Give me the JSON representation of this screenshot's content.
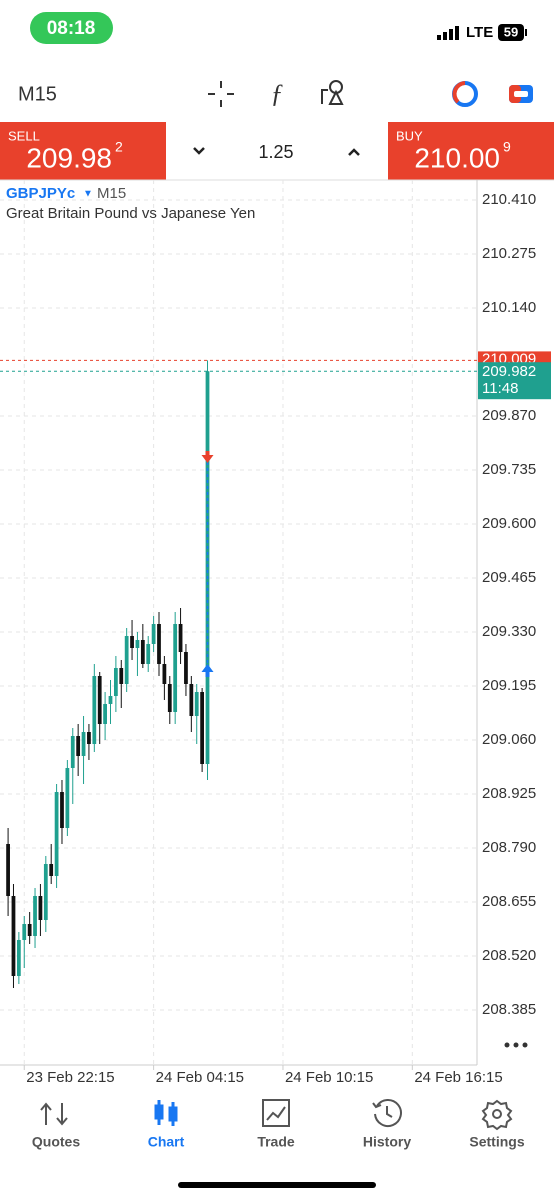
{
  "status_bar": {
    "time": "08:18",
    "network": "LTE",
    "battery": "59"
  },
  "toolbar": {
    "timeframe": "M15"
  },
  "trade_panel": {
    "sell_label": "SELL",
    "sell_price": "209.98",
    "sell_pip": "2",
    "volume": "1.25",
    "buy_label": "BUY",
    "buy_price": "210.00",
    "buy_pip": "9"
  },
  "chart_data": {
    "type": "candlestick",
    "symbol": "GBPJPYc",
    "timeframe": "M15",
    "description": "Great Britain Pound vs Japanese Yen",
    "x": [
      -3,
      -2,
      -1,
      0,
      1,
      2,
      3,
      4,
      5,
      6,
      7,
      8,
      9,
      10,
      11,
      12,
      13,
      14,
      15,
      16,
      17,
      18,
      19,
      20,
      21,
      22,
      23,
      24,
      25,
      26,
      27,
      28,
      29,
      30,
      31,
      32,
      33,
      34
    ],
    "open": [
      208.8,
      208.67,
      208.47,
      208.56,
      208.6,
      208.57,
      208.67,
      208.61,
      208.75,
      208.72,
      208.93,
      208.84,
      208.99,
      209.07,
      209.02,
      209.08,
      209.05,
      209.22,
      209.1,
      209.15,
      209.17,
      209.24,
      209.2,
      209.32,
      209.29,
      209.31,
      209.25,
      209.3,
      209.35,
      209.25,
      209.2,
      209.13,
      209.35,
      209.28,
      209.2,
      209.12,
      209.18,
      209.0
    ],
    "high": [
      208.84,
      208.7,
      208.58,
      208.62,
      208.63,
      208.69,
      208.7,
      208.77,
      208.8,
      208.95,
      208.96,
      209.01,
      209.09,
      209.1,
      209.12,
      209.1,
      209.25,
      209.23,
      209.18,
      209.21,
      209.27,
      209.26,
      209.34,
      209.36,
      209.33,
      209.35,
      209.32,
      209.37,
      209.38,
      209.27,
      209.22,
      209.38,
      209.39,
      209.3,
      209.22,
      209.2,
      209.19,
      210.009
    ],
    "low": [
      208.62,
      208.44,
      208.45,
      208.49,
      208.55,
      208.54,
      208.57,
      208.58,
      208.7,
      208.69,
      208.8,
      208.82,
      208.9,
      208.97,
      208.95,
      209.01,
      209.03,
      209.05,
      209.06,
      209.1,
      209.13,
      209.14,
      209.18,
      209.26,
      209.22,
      209.24,
      209.23,
      209.28,
      209.22,
      209.16,
      209.1,
      209.1,
      209.25,
      209.17,
      209.08,
      209.05,
      208.98,
      208.96
    ],
    "close": [
      208.67,
      208.47,
      208.56,
      208.6,
      208.57,
      208.67,
      208.61,
      208.75,
      208.72,
      208.93,
      208.84,
      208.99,
      209.07,
      209.02,
      209.08,
      209.05,
      209.22,
      209.1,
      209.15,
      209.17,
      209.24,
      209.2,
      209.32,
      209.29,
      209.31,
      209.25,
      209.3,
      209.35,
      209.25,
      209.2,
      209.13,
      209.35,
      209.28,
      209.2,
      209.12,
      209.18,
      209.0,
      209.982
    ],
    "up_color": "#1fa08f",
    "down_color": "#111111",
    "xlim": [
      -4.5,
      84
    ],
    "xticks": [
      {
        "value": 0,
        "label": "23 Feb 22:15"
      },
      {
        "value": 24,
        "label": "24 Feb 04:15"
      },
      {
        "value": 48,
        "label": "24 Feb 10:15"
      },
      {
        "value": 72,
        "label": "24 Feb 16:15"
      }
    ],
    "ylim": [
      208.2475,
      210.46
    ],
    "yticks": [
      {
        "value": 210.41,
        "label": "210.410"
      },
      210.275,
      {
        "value": 210.14,
        "label": "210.140"
      },
      {
        "value": 209.87,
        "label": "209.870"
      },
      209.735,
      {
        "value": 209.6,
        "label": "209.600"
      },
      209.465,
      {
        "value": 209.33,
        "label": "209.330"
      },
      209.195,
      {
        "value": 209.06,
        "label": "209.060"
      },
      208.925,
      {
        "value": 208.79,
        "label": "208.790"
      },
      208.655,
      {
        "value": 208.52,
        "label": "208.520"
      },
      208.385
    ],
    "grid": true,
    "ask_line": {
      "value": 210.009,
      "color": "#e8412c"
    },
    "bid_line": {
      "value": 209.982,
      "countdown": "11:48",
      "color": "#1fa08f"
    }
  },
  "tab_bar": {
    "tabs": [
      {
        "label": "Quotes"
      },
      {
        "label": "Chart"
      },
      {
        "label": "Trade"
      },
      {
        "label": "History"
      },
      {
        "label": "Settings"
      }
    ],
    "active": 1,
    "active_color": "#1877f2",
    "color": "#555555"
  }
}
